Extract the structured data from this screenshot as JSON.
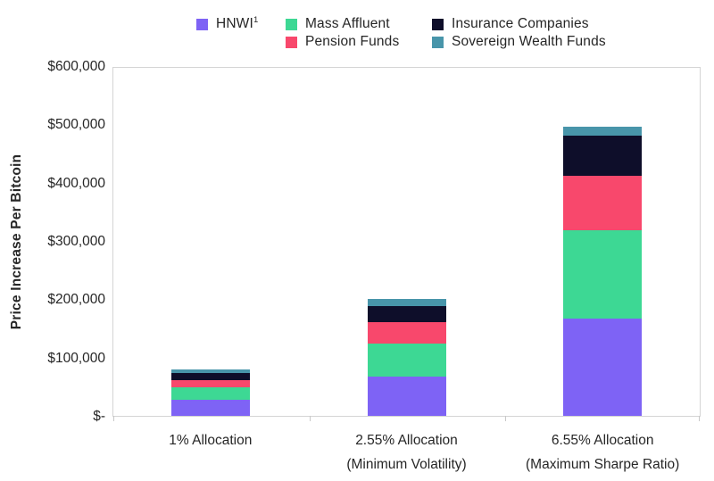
{
  "chart_data": {
    "type": "bar",
    "stacked": true,
    "title": "",
    "xlabel": "",
    "ylabel": "Price Increase Per Bitcoin",
    "ylim": [
      0,
      600000
    ],
    "y_tick_step": 100000,
    "y_ticks_top_to_bottom": [
      "$600,000",
      "$500,000",
      "$400,000",
      "$300,000",
      "$200,000",
      "$100,000",
      "$-"
    ],
    "grid": false,
    "legend_position": "top",
    "legend_columns": [
      [
        0
      ],
      [
        1,
        2
      ],
      [
        3,
        4
      ]
    ],
    "categories": [
      {
        "line1": "1% Allocation",
        "line2": ""
      },
      {
        "line1": "2.55% Allocation",
        "line2": "(Minimum Volatility)"
      },
      {
        "line1": "6.55% Allocation",
        "line2": "(Maximum Sharpe Ratio)"
      }
    ],
    "series": [
      {
        "key": "hnwi",
        "label": "HNWI",
        "footnote_sup": "1",
        "color": "#7e63f5",
        "values": [
          27000,
          67000,
          167000
        ]
      },
      {
        "key": "mass-affluent",
        "label": "Mass Affluent",
        "footnote_sup": "",
        "color": "#3dd894",
        "values": [
          22000,
          57000,
          151000
        ]
      },
      {
        "key": "pension-funds",
        "label": "Pension Funds",
        "footnote_sup": "",
        "color": "#f8486c",
        "values": [
          12500,
          37000,
          94000
        ]
      },
      {
        "key": "insurance-companies",
        "label": "Insurance Companies",
        "footnote_sup": "",
        "color": "#0e0e2a",
        "values": [
          12500,
          28000,
          68000
        ]
      },
      {
        "key": "sovereign-wealth-funds",
        "label": "Sovereign Wealth Funds",
        "footnote_sup": "",
        "color": "#4895aa",
        "values": [
          5500,
          11000,
          16000
        ]
      }
    ],
    "stack_order": "series order is bottom-to-top",
    "axis_line_color": "#d4d4d4",
    "tick_color": "#c8c8c8",
    "text_color": "#262626"
  }
}
